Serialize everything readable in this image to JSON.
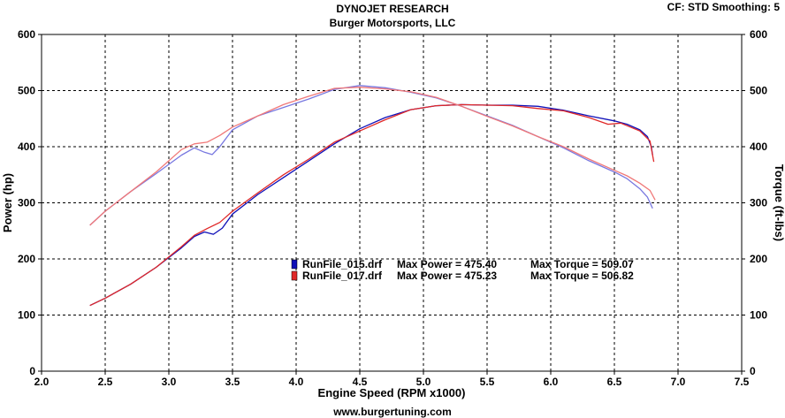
{
  "header": {
    "title": "DYNOJET RESEARCH",
    "subtitle": "Burger Motorsports, LLC",
    "cf_info": "CF: STD  Smoothing: 5"
  },
  "footer": {
    "url": "www.burgertuning.com"
  },
  "colors": {
    "run1": "#1010b8",
    "run2": "#e02828",
    "run1_torque": "#7878e0",
    "run2_torque": "#f07878",
    "grid": "#000000"
  },
  "legend": [
    {
      "file": "RunFile_015.drf",
      "power_label": "Max Power = 475.40",
      "torque_label": "Max Torque = 509.07",
      "color": "#1010b8"
    },
    {
      "file": "RunFile_017.drf",
      "power_label": "Max Power = 475.23",
      "torque_label": "Max Torque = 506.82",
      "color": "#e02828"
    }
  ],
  "chart_data": {
    "type": "line",
    "title": "DYNOJET RESEARCH",
    "subtitle": "Burger Motorsports, LLC",
    "xlabel": "Engine Speed (RPM x1000)",
    "ylabel_left": "Power (hp)",
    "ylabel_right": "Torque (ft-lbs)",
    "xlim": [
      2.0,
      7.5
    ],
    "ylim": [
      0,
      600
    ],
    "xticks": [
      "2.0",
      "2.5",
      "3.0",
      "3.5",
      "4.0",
      "4.5",
      "5.0",
      "5.5",
      "6.0",
      "6.5",
      "7.0",
      "7.5"
    ],
    "yticks": [
      "0",
      "100",
      "200",
      "300",
      "400",
      "500",
      "600"
    ],
    "grid": true,
    "series": [
      {
        "name": "RunFile_015.drf",
        "measure": "Power",
        "color": "#1010b8",
        "points": [
          [
            2.38,
            117
          ],
          [
            2.5,
            130
          ],
          [
            2.7,
            155
          ],
          [
            2.9,
            185
          ],
          [
            3.1,
            220
          ],
          [
            3.2,
            240
          ],
          [
            3.28,
            248
          ],
          [
            3.35,
            244
          ],
          [
            3.42,
            255
          ],
          [
            3.5,
            280
          ],
          [
            3.7,
            315
          ],
          [
            3.9,
            345
          ],
          [
            4.1,
            375
          ],
          [
            4.3,
            405
          ],
          [
            4.5,
            432
          ],
          [
            4.7,
            452
          ],
          [
            4.9,
            466
          ],
          [
            5.1,
            473
          ],
          [
            5.3,
            475
          ],
          [
            5.5,
            474
          ],
          [
            5.7,
            474
          ],
          [
            5.9,
            472
          ],
          [
            6.1,
            465
          ],
          [
            6.3,
            455
          ],
          [
            6.5,
            446
          ],
          [
            6.6,
            440
          ],
          [
            6.7,
            430
          ],
          [
            6.76,
            418
          ],
          [
            6.79,
            400
          ],
          [
            6.8,
            385
          ]
        ]
      },
      {
        "name": "RunFile_017.drf",
        "measure": "Power",
        "color": "#e02828",
        "points": [
          [
            2.38,
            117
          ],
          [
            2.5,
            130
          ],
          [
            2.7,
            155
          ],
          [
            2.9,
            185
          ],
          [
            3.1,
            222
          ],
          [
            3.2,
            242
          ],
          [
            3.3,
            254
          ],
          [
            3.4,
            265
          ],
          [
            3.5,
            285
          ],
          [
            3.7,
            318
          ],
          [
            3.9,
            350
          ],
          [
            4.1,
            378
          ],
          [
            4.3,
            408
          ],
          [
            4.5,
            428
          ],
          [
            4.7,
            448
          ],
          [
            4.9,
            466
          ],
          [
            5.1,
            473
          ],
          [
            5.3,
            475
          ],
          [
            5.5,
            474
          ],
          [
            5.7,
            473
          ],
          [
            5.9,
            468
          ],
          [
            6.1,
            464
          ],
          [
            6.3,
            452
          ],
          [
            6.45,
            440
          ],
          [
            6.55,
            442
          ],
          [
            6.7,
            428
          ],
          [
            6.78,
            410
          ],
          [
            6.81,
            373
          ]
        ]
      },
      {
        "name": "RunFile_015.drf",
        "measure": "Torque",
        "color": "#7878e0",
        "points": [
          [
            2.38,
            260
          ],
          [
            2.5,
            285
          ],
          [
            2.7,
            320
          ],
          [
            2.9,
            352
          ],
          [
            3.1,
            385
          ],
          [
            3.2,
            398
          ],
          [
            3.28,
            390
          ],
          [
            3.34,
            386
          ],
          [
            3.4,
            400
          ],
          [
            3.5,
            430
          ],
          [
            3.7,
            455
          ],
          [
            3.9,
            470
          ],
          [
            4.1,
            485
          ],
          [
            4.3,
            502
          ],
          [
            4.5,
            509
          ],
          [
            4.7,
            505
          ],
          [
            4.9,
            497
          ],
          [
            5.1,
            487
          ],
          [
            5.3,
            472
          ],
          [
            5.5,
            455
          ],
          [
            5.7,
            438
          ],
          [
            5.9,
            418
          ],
          [
            6.1,
            398
          ],
          [
            6.3,
            375
          ],
          [
            6.5,
            355
          ],
          [
            6.6,
            343
          ],
          [
            6.7,
            325
          ],
          [
            6.76,
            310
          ],
          [
            6.8,
            290
          ]
        ]
      },
      {
        "name": "RunFile_017.drf",
        "measure": "Torque",
        "color": "#f07878",
        "points": [
          [
            2.38,
            260
          ],
          [
            2.5,
            285
          ],
          [
            2.7,
            320
          ],
          [
            2.9,
            355
          ],
          [
            3.1,
            395
          ],
          [
            3.2,
            405
          ],
          [
            3.3,
            408
          ],
          [
            3.4,
            420
          ],
          [
            3.5,
            435
          ],
          [
            3.7,
            455
          ],
          [
            3.9,
            475
          ],
          [
            4.1,
            490
          ],
          [
            4.3,
            504
          ],
          [
            4.5,
            506
          ],
          [
            4.7,
            503
          ],
          [
            4.9,
            498
          ],
          [
            5.1,
            488
          ],
          [
            5.3,
            472
          ],
          [
            5.5,
            454
          ],
          [
            5.7,
            437
          ],
          [
            5.9,
            418
          ],
          [
            6.1,
            400
          ],
          [
            6.3,
            378
          ],
          [
            6.5,
            358
          ],
          [
            6.6,
            348
          ],
          [
            6.7,
            335
          ],
          [
            6.78,
            322
          ],
          [
            6.82,
            305
          ]
        ]
      }
    ]
  }
}
